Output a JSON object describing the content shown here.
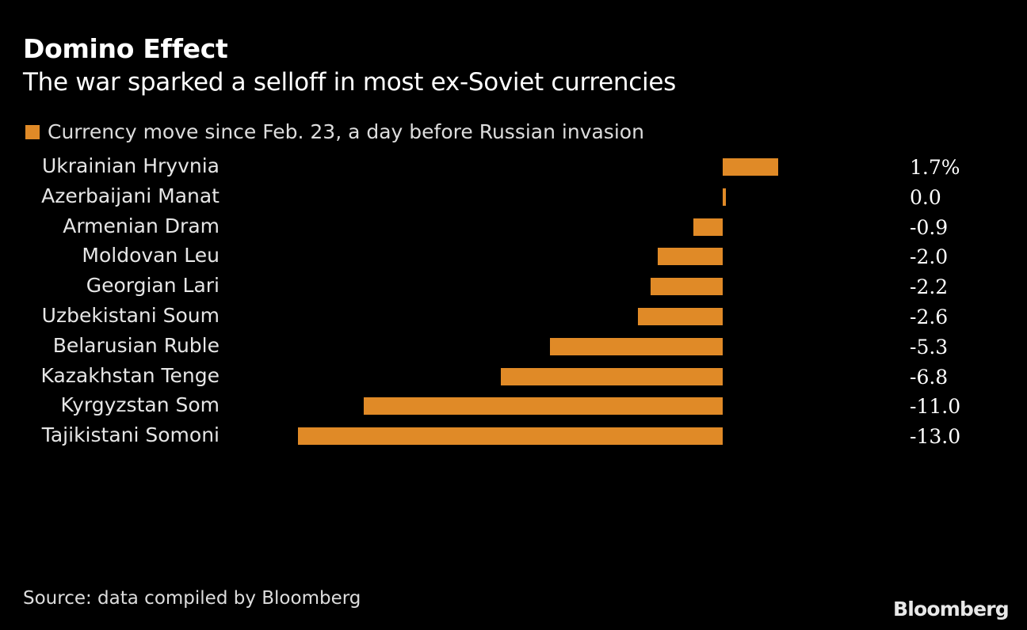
{
  "title": "Domino Effect",
  "subtitle": "The war sparked a selloff in most ex-Soviet currencies",
  "source": "Source: data compiled by Bloomberg",
  "logo": "Bloomberg",
  "colors": {
    "bar": "#e08a27",
    "background": "#000000"
  },
  "chart_data": {
    "type": "bar",
    "orientation": "horizontal",
    "title": "Domino Effect",
    "subtitle": "The war sparked a selloff in most ex-Soviet currencies",
    "legend": [
      {
        "name": "Currency move since Feb. 23, a day before Russian invasion",
        "placement": "top-left"
      }
    ],
    "categories": [
      "Ukrainian Hryvnia",
      "Azerbaijani Manat",
      "Armenian Dram",
      "Moldovan Leu",
      "Georgian Lari",
      "Uzbekistani Soum",
      "Belarusian Ruble",
      "Kazakhstan Tenge",
      "Kyrgyzstan Som",
      "Tajikistani Somoni"
    ],
    "values": [
      1.7,
      0.0,
      -0.9,
      -2.0,
      -2.2,
      -2.6,
      -5.3,
      -6.8,
      -11.0,
      -13.0
    ],
    "value_labels": [
      "1.7%",
      "0.0",
      "-0.9",
      "-2.0",
      "-2.2",
      "-2.6",
      "-5.3",
      "-6.8",
      "-11.0",
      "-13.0"
    ],
    "unit": "%",
    "xlim": [
      -13,
      1.7
    ],
    "grid": false
  }
}
